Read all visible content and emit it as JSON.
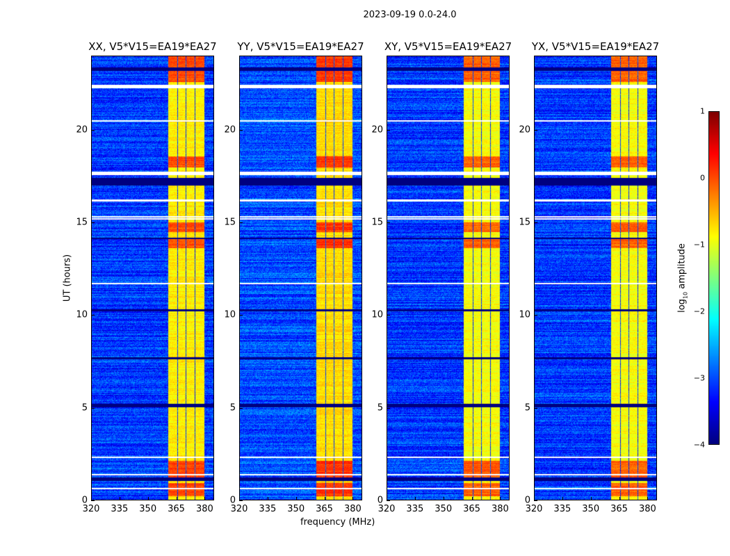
{
  "suptitle": "2023-09-19 0.0-24.0",
  "chart_data": {
    "type": "heatmap",
    "xlabel": "frequency (MHz)",
    "ylabel": "UT (hours)",
    "xlim": [
      320,
      385
    ],
    "ylim": [
      0,
      24
    ],
    "xticks": [
      "320",
      "335",
      "350",
      "365",
      "380"
    ],
    "xtick_values": [
      320,
      335,
      350,
      365,
      380
    ],
    "yticks": [
      "0",
      "5",
      "10",
      "15",
      "20"
    ],
    "ytick_values": [
      0,
      5,
      10,
      15,
      20
    ],
    "panels": [
      {
        "title": "XX, V5*V15=EA19*EA27",
        "background_level": -3.1,
        "rfi_level": -0.8
      },
      {
        "title": "YY, V5*V15=EA19*EA27",
        "background_level": -3.0,
        "rfi_level": -0.7
      },
      {
        "title": "XY, V5*V15=EA19*EA27",
        "background_level": -3.1,
        "rfi_level": -0.9
      },
      {
        "title": "YX, V5*V15=EA19*EA27",
        "background_level": -3.1,
        "rfi_level": -0.9
      }
    ],
    "rfi_subbands_mhz": [
      [
        361,
        365.5
      ],
      [
        366,
        370
      ],
      [
        370.5,
        375
      ],
      [
        375.5,
        380
      ]
    ],
    "flagged_hours": [
      0.6,
      1.35,
      2.3,
      11.7,
      15.2,
      15.3,
      16.2,
      17.6,
      17.7,
      20.5,
      22.3,
      22.4
    ],
    "hot_hours": [
      [
        0.2,
        0.9
      ],
      [
        1.2,
        2.1
      ],
      [
        13.6,
        14.2
      ],
      [
        14.5,
        15.0
      ],
      [
        18.0,
        18.6
      ],
      [
        22.6,
        24.0
      ]
    ],
    "low_hours": [
      [
        1.0,
        1.2
      ],
      [
        5.0,
        5.2
      ],
      [
        7.6,
        7.7
      ],
      [
        10.2,
        10.3
      ],
      [
        14.1,
        14.2
      ],
      [
        17.0,
        17.4
      ],
      [
        23.2,
        23.4
      ]
    ],
    "colorbar": {
      "label": "log10 amplitude",
      "label_main": "log",
      "label_sub": "10",
      "label_rest": " amplitude",
      "range": [
        -4,
        1
      ],
      "ticks": [
        "1",
        "0",
        "−1",
        "−2",
        "−3",
        "−4"
      ],
      "tick_values": [
        1,
        0,
        -1,
        -2,
        -3,
        -4
      ],
      "colormap": "jet"
    }
  }
}
